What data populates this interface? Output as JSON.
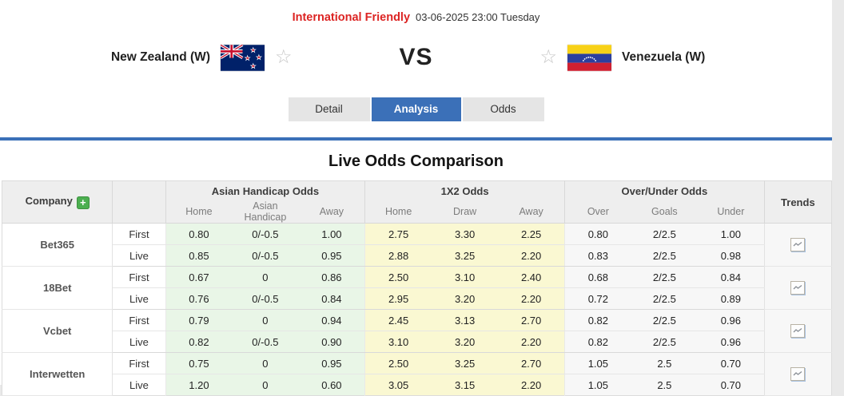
{
  "header": {
    "league": "International Friendly",
    "datetime": "03-06-2025 23:00 Tuesday"
  },
  "match": {
    "home_team": "New Zealand (W)",
    "away_team": "Venezuela (W)",
    "vs_label": "VS",
    "favorite_star": "☆"
  },
  "tabs": [
    {
      "label": "Detail",
      "active": false
    },
    {
      "label": "Analysis",
      "active": true
    },
    {
      "label": "Odds",
      "active": false
    }
  ],
  "section_title": "Live Odds Comparison",
  "table": {
    "company_header": "Company",
    "add_button": "+",
    "groups": [
      "Asian Handicap Odds",
      "1X2 Odds",
      "Over/Under Odds"
    ],
    "subheaders": {
      "ah": [
        "Home",
        "Asian Handicap",
        "Away"
      ],
      "x12": [
        "Home",
        "Draw",
        "Away"
      ],
      "ou": [
        "Over",
        "Goals",
        "Under"
      ]
    },
    "trends_header": "Trends",
    "row_labels": {
      "first": "First",
      "live": "Live"
    },
    "companies": [
      {
        "name": "Bet365",
        "first": {
          "ah": [
            "0.80",
            "0/-0.5",
            "1.00"
          ],
          "x12": [
            "2.75",
            "3.30",
            "2.25"
          ],
          "ou": [
            "0.80",
            "2/2.5",
            "1.00"
          ]
        },
        "live": {
          "ah": [
            "0.85",
            "0/-0.5",
            "0.95"
          ],
          "x12": [
            "2.88",
            "3.25",
            "2.20"
          ],
          "ou": [
            "0.83",
            "2/2.5",
            "0.98"
          ]
        }
      },
      {
        "name": "18Bet",
        "first": {
          "ah": [
            "0.67",
            "0",
            "0.86"
          ],
          "x12": [
            "2.50",
            "3.10",
            "2.40"
          ],
          "ou": [
            "0.68",
            "2/2.5",
            "0.84"
          ]
        },
        "live": {
          "ah": [
            "0.76",
            "0/-0.5",
            "0.84"
          ],
          "x12": [
            "2.95",
            "3.20",
            "2.20"
          ],
          "ou": [
            "0.72",
            "2/2.5",
            "0.89"
          ]
        }
      },
      {
        "name": "Vcbet",
        "first": {
          "ah": [
            "0.79",
            "0",
            "0.94"
          ],
          "x12": [
            "2.45",
            "3.13",
            "2.70"
          ],
          "ou": [
            "0.82",
            "2/2.5",
            "0.96"
          ]
        },
        "live": {
          "ah": [
            "0.82",
            "0/-0.5",
            "0.90"
          ],
          "x12": [
            "3.10",
            "3.20",
            "2.20"
          ],
          "ou": [
            "0.82",
            "2/2.5",
            "0.96"
          ]
        }
      },
      {
        "name": "Interwetten",
        "first": {
          "ah": [
            "0.75",
            "0",
            "0.95"
          ],
          "x12": [
            "2.50",
            "3.25",
            "2.70"
          ],
          "ou": [
            "1.05",
            "2.5",
            "0.70"
          ]
        },
        "live": {
          "ah": [
            "1.20",
            "0",
            "0.60"
          ],
          "x12": [
            "3.05",
            "3.15",
            "2.20"
          ],
          "ou": [
            "1.05",
            "2.5",
            "0.70"
          ]
        }
      }
    ]
  },
  "icons": {
    "favorite": "star-outline",
    "trends_cell": "line-chart",
    "home_flag": "new-zealand-flag",
    "away_flag": "venezuela-flag"
  },
  "colors": {
    "accent_blue": "#3b70b8",
    "league_red": "#dc2423",
    "add_green": "#4caf50",
    "ah_bg": "#e9f6e7",
    "x12_bg": "#faf8d2",
    "ou_bg": "#f7f7f7"
  }
}
